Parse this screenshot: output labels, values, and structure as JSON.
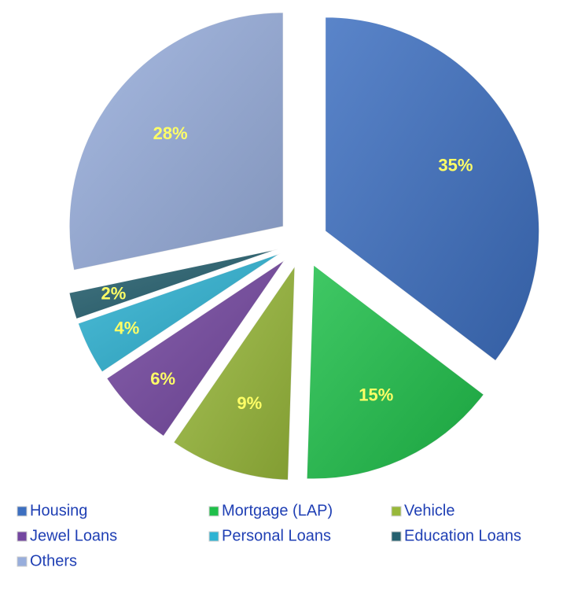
{
  "chart_data": {
    "type": "pie",
    "categories": [
      "Housing",
      "Mortgage (LAP)",
      "Vehicle",
      "Jewel Loans",
      "Personal Loans",
      "Education Loans",
      "Others"
    ],
    "values": [
      35,
      15,
      9,
      6,
      4,
      2,
      28
    ],
    "value_labels": [
      "35%",
      "15%",
      "9%",
      "6%",
      "4%",
      "2%",
      "28%"
    ],
    "colors": [
      "#3d6fc0",
      "#1fbf4a",
      "#98b83a",
      "#7447a0",
      "#2fb3d3",
      "#25606f",
      "#98aedc"
    ],
    "legend": "bottom"
  }
}
